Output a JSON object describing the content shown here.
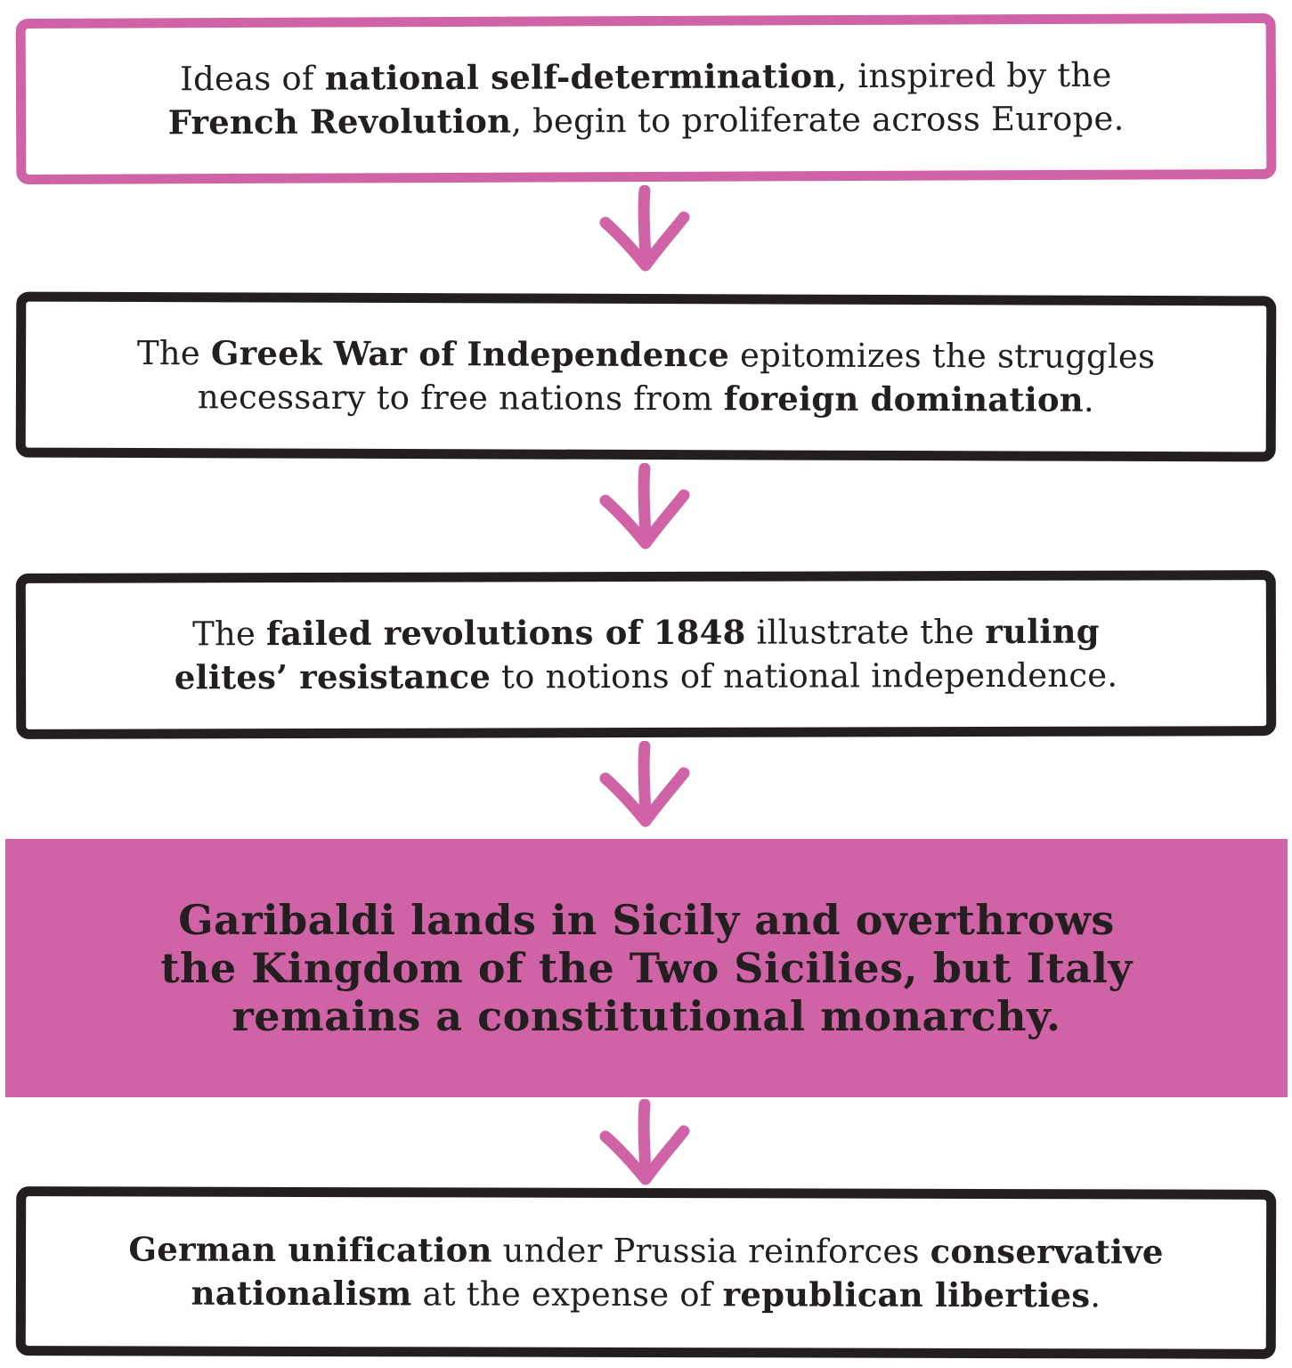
{
  "colors": {
    "accent": "#d063a5",
    "ink": "#231f20",
    "background": "#ffffff"
  },
  "steps": [
    {
      "style": "pink-outline",
      "line1": [
        {
          "text": "Ideas of ",
          "bold": false
        },
        {
          "text": "national self-determination",
          "bold": true
        },
        {
          "text": ", inspired by the",
          "bold": false
        }
      ],
      "line2": [
        {
          "text": "French Revolution",
          "bold": true
        },
        {
          "text": ", begin to proliferate across Europe.",
          "bold": false
        }
      ]
    },
    {
      "style": "dark-outline",
      "line1": [
        {
          "text": "The ",
          "bold": false
        },
        {
          "text": "Greek War of Independence",
          "bold": true
        },
        {
          "text": " epitomizes the struggles",
          "bold": false
        }
      ],
      "line2": [
        {
          "text": "necessary to free nations from ",
          "bold": false
        },
        {
          "text": "foreign domination",
          "bold": true
        },
        {
          "text": ".",
          "bold": false
        }
      ]
    },
    {
      "style": "dark-outline",
      "line1": [
        {
          "text": "The ",
          "bold": false
        },
        {
          "text": "failed revolutions of 1848",
          "bold": true
        },
        {
          "text": " illustrate the ",
          "bold": false
        },
        {
          "text": "ruling",
          "bold": true
        }
      ],
      "line2": [
        {
          "text": "elites’ resistance",
          "bold": true
        },
        {
          "text": " to notions of national independence.",
          "bold": false
        }
      ]
    },
    {
      "style": "pink-filled",
      "line1": [
        {
          "text": "Garibaldi lands in Sicily and overthrows",
          "bold": true
        }
      ],
      "line2": [
        {
          "text": "the Kingdom of the Two Sicilies, but Italy",
          "bold": true
        }
      ],
      "line3": [
        {
          "text": "remains a constitutional monarchy.",
          "bold": true
        }
      ]
    },
    {
      "style": "dark-outline",
      "line1": [
        {
          "text": "German unification",
          "bold": true
        },
        {
          "text": " under Prussia reinforces ",
          "bold": false
        },
        {
          "text": "conservative",
          "bold": true
        }
      ],
      "line2": [
        {
          "text": "nationalism",
          "bold": true
        },
        {
          "text": " at the expense of ",
          "bold": false
        },
        {
          "text": "republican liberties",
          "bold": true
        },
        {
          "text": ".",
          "bold": false
        }
      ]
    }
  ],
  "arrows": [
    {
      "icon": "down-arrow-icon",
      "color": "#d063a5"
    },
    {
      "icon": "down-arrow-icon",
      "color": "#d063a5"
    },
    {
      "icon": "down-arrow-icon",
      "color": "#d063a5"
    },
    {
      "icon": "down-arrow-icon",
      "color": "#d063a5"
    }
  ]
}
